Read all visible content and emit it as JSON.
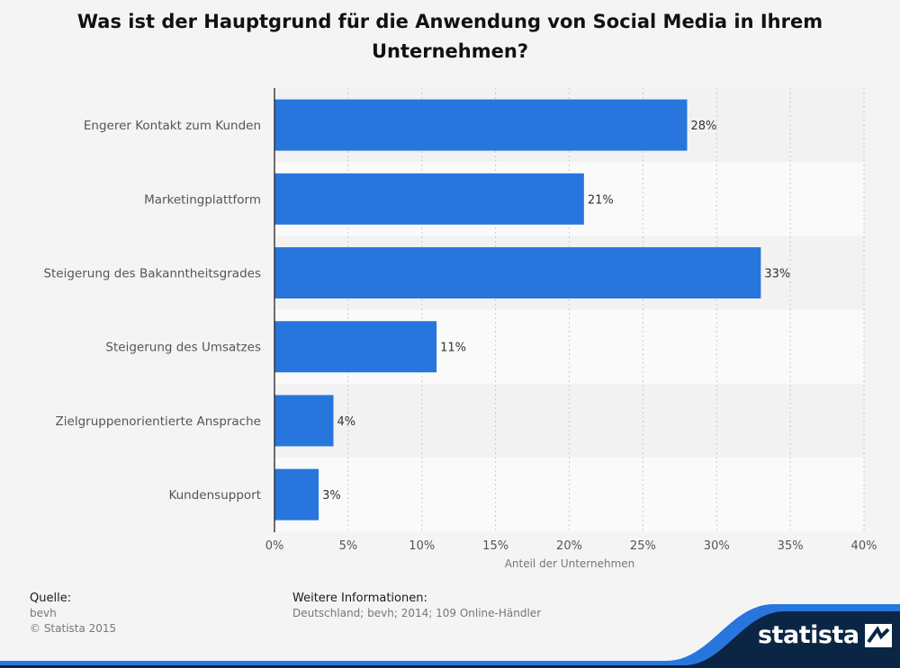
{
  "chart_data": {
    "type": "bar",
    "orientation": "horizontal",
    "title": "Was ist der Hauptgrund für die Anwendung von Social Media in Ihrem Unternehmen?",
    "xlabel": "Anteil der Unternehmen",
    "ylabel": "",
    "categories": [
      "Engerer Kontakt zum Kunden",
      "Marketingplattform",
      "Steigerung des Bakanntheitsgrades",
      "Steigerung des Umsatzes",
      "Zielgruppenorientierte Ansprache",
      "Kundensupport"
    ],
    "values": [
      28,
      21,
      33,
      11,
      4,
      3
    ],
    "value_labels": [
      "28%",
      "21%",
      "33%",
      "11%",
      "4%",
      "3%"
    ],
    "xlim": [
      0,
      40
    ],
    "xticks": [
      0,
      5,
      10,
      15,
      20,
      25,
      30,
      35,
      40
    ],
    "xtick_labels": [
      "0%",
      "5%",
      "10%",
      "15%",
      "20%",
      "25%",
      "30%",
      "35%",
      "40%"
    ],
    "grid": "vertical dotted",
    "bar_color": "#2876dd"
  },
  "footer": {
    "source_heading": "Quelle:",
    "source_lines": [
      "bevh",
      "© Statista 2015"
    ],
    "info_heading": "Weitere Informationen:",
    "info_line": "Deutschland; bevh; 2014; 109 Online-Händler"
  },
  "brand": {
    "name": "statista",
    "icon": "statista-logo-icon",
    "band_color": "#0b2544",
    "accent_color": "#2876dd"
  }
}
